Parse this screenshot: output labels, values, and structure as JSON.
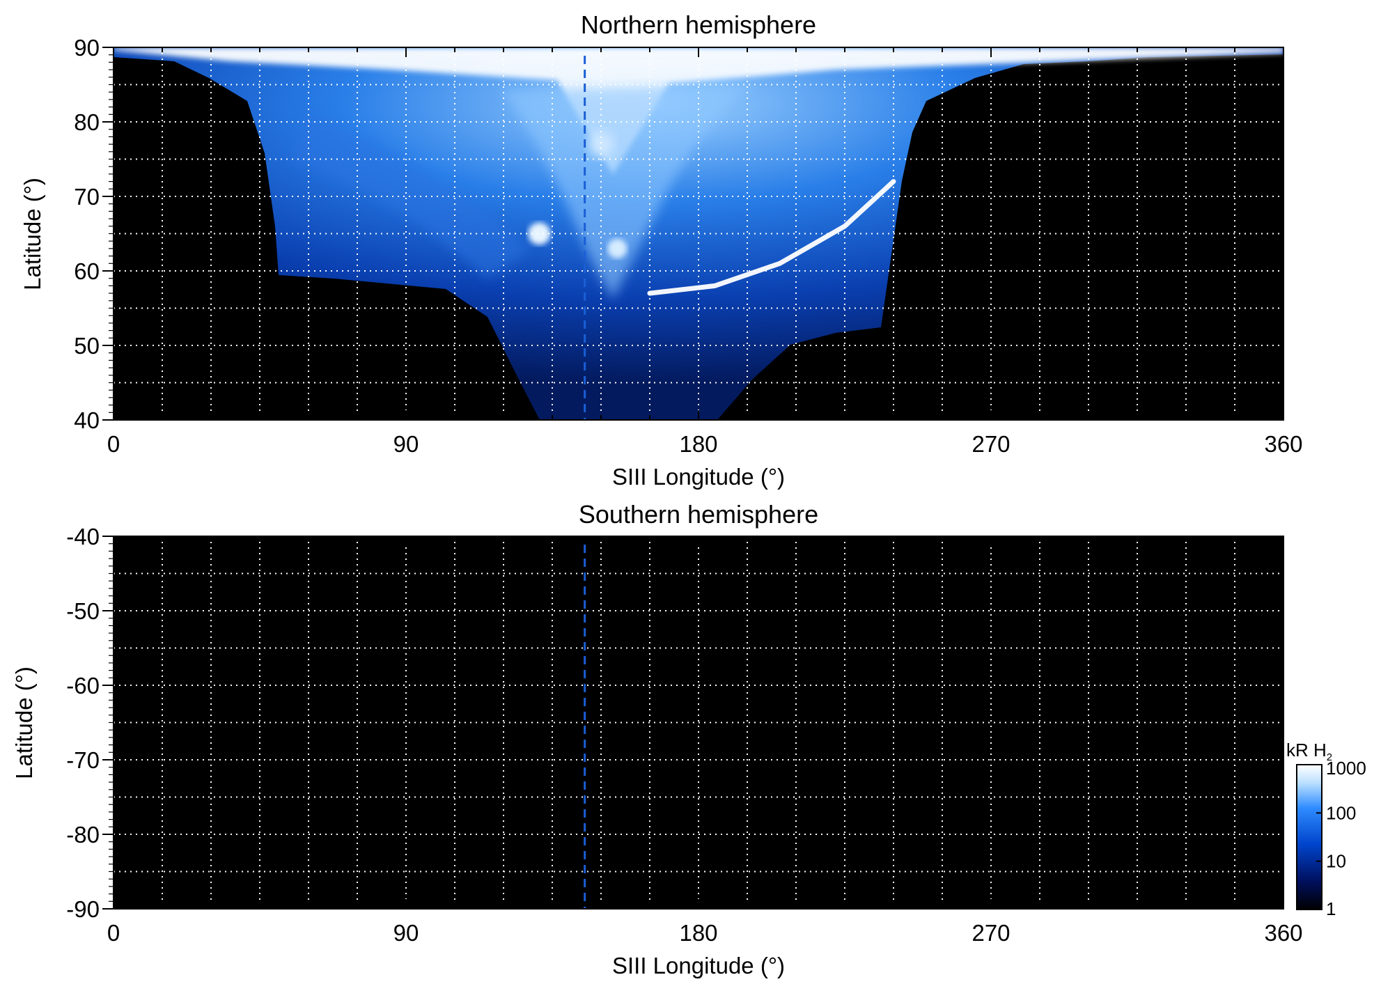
{
  "chart_data": [
    {
      "type": "heatmap",
      "title": "Northern hemisphere",
      "xlabel": "SIII Longitude (°)",
      "ylabel": "Latitude (°)",
      "xlim": [
        0,
        360
      ],
      "ylim": [
        40,
        90
      ],
      "x_ticks": [
        "0",
        "90",
        "180",
        "270",
        "360"
      ],
      "y_ticks": [
        "40",
        "50",
        "60",
        "70",
        "80",
        "90"
      ],
      "grid": "dotted white, every 15° longitude and 5° latitude",
      "background": "black (no data / < 1 kR)",
      "reference_longitude": 145,
      "reference_line_style": "dashed blue vertical",
      "emission_coverage_lon_range": [
        0,
        360
      ],
      "main_auroral_arc": [
        {
          "lon": 165,
          "lat": 57
        },
        {
          "lon": 185,
          "lat": 58
        },
        {
          "lon": 205,
          "lat": 61
        },
        {
          "lon": 225,
          "lat": 66
        },
        {
          "lon": 240,
          "lat": 72
        }
      ],
      "polar_bright_spots": [
        {
          "lon": 131,
          "lat": 65
        },
        {
          "lon": 155,
          "lat": 63
        },
        {
          "lon": 150,
          "lat": 77
        }
      ]
    },
    {
      "type": "heatmap",
      "title": "Southern hemisphere",
      "xlabel": "SIII Longitude (°)",
      "ylabel": "Latitude (°)",
      "xlim": [
        0,
        360
      ],
      "ylim": [
        -90,
        -40
      ],
      "x_ticks": [
        "0",
        "90",
        "180",
        "270",
        "360"
      ],
      "y_ticks": [
        "-40",
        "-50",
        "-60",
        "-70",
        "-80",
        "-90"
      ],
      "grid": "dotted white, every 15° longitude and 5° latitude",
      "background": "black (no data)",
      "reference_longitude": 145,
      "reference_line_style": "dashed blue vertical"
    }
  ],
  "colorbar": {
    "label_main": "kR H",
    "label_sub": "2",
    "scale": "log",
    "range": [
      1,
      1000
    ],
    "ticks": [
      "1000",
      "100",
      "10",
      "1"
    ],
    "colors": [
      "#000000",
      "#001060",
      "#0044cc",
      "#2f8cff",
      "#bfe2ff",
      "#ffffff"
    ]
  }
}
